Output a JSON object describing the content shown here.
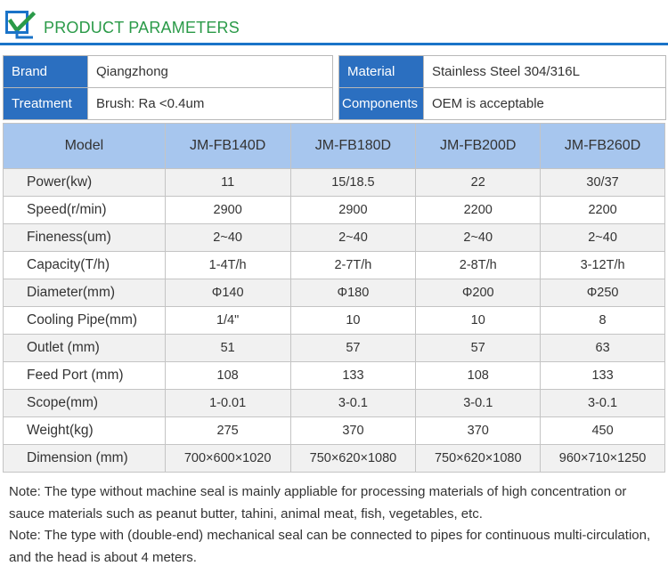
{
  "header": {
    "title": "PRODUCT PARAMETERS"
  },
  "info": [
    [
      {
        "label": "Brand",
        "value": "Qiangzhong"
      },
      {
        "label": "Material",
        "value": "Stainless Steel 304/316L"
      }
    ],
    [
      {
        "label": "Treatment",
        "value": "Brush: Ra <0.4um"
      },
      {
        "label": "Components",
        "value": "OEM is acceptable"
      }
    ]
  ],
  "table": {
    "columns": [
      "Model",
      "JM-FB140D",
      "JM-FB180D",
      "JM-FB200D",
      "JM-FB260D"
    ],
    "rows": [
      [
        "Power(kw)",
        "11",
        "15/18.5",
        "22",
        "30/37"
      ],
      [
        "Speed(r/min)",
        "2900",
        "2900",
        "2200",
        "2200"
      ],
      [
        "Fineness(um)",
        "2~40",
        "2~40",
        "2~40",
        "2~40"
      ],
      [
        "Capacity(T/h)",
        "1-4T/h",
        "2-7T/h",
        "2-8T/h",
        "3-12T/h"
      ],
      [
        "Diameter(mm)",
        "Φ140",
        "Φ180",
        "Φ200",
        "Φ250"
      ],
      [
        "Cooling Pipe(mm)",
        "1/4\"",
        "10",
        "10",
        "8"
      ],
      [
        "Outlet (mm)",
        "51",
        "57",
        "57",
        "63"
      ],
      [
        "Feed Port (mm)",
        "108",
        "133",
        "108",
        "133"
      ],
      [
        "Scope(mm)",
        "1-0.01",
        "3-0.1",
        "3-0.1",
        "3-0.1"
      ],
      [
        "Weight(kg)",
        "275",
        "370",
        "370",
        "450"
      ],
      [
        "Dimension (mm)",
        "700×600×1020",
        "750×620×1080",
        "750×620×1080",
        "960×710×1250"
      ]
    ]
  },
  "notes": [
    "Note:  The type without machine seal is mainly appliable for processing materials of high concentration or sauce materials such as peanut butter, tahini, animal meat, fish, vegetables, etc.",
    "Note:  The type with (double-end) mechanical seal can be connected to pipes for continuous multi-circulation, and the head is about 4 meters."
  ],
  "colors": {
    "accent": "#1a73c8",
    "title": "#2a9a48",
    "label_bg": "#2b6fc0",
    "table_header_bg": "#a7c6ee"
  },
  "icons": {
    "logo": "brand-logo-icon"
  }
}
